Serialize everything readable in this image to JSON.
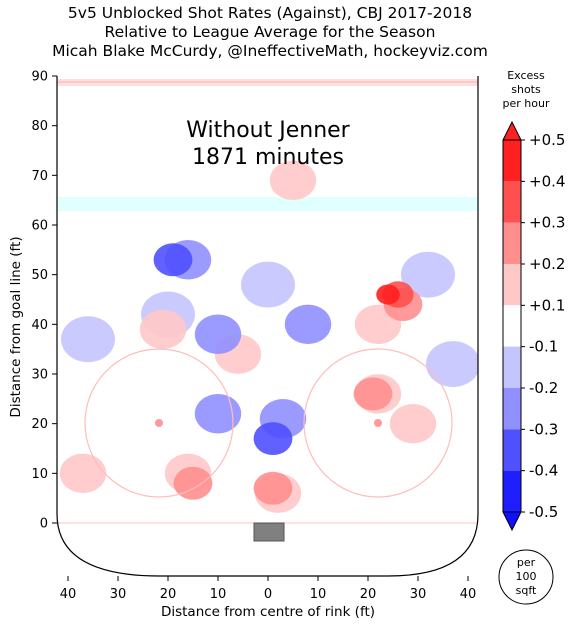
{
  "title_lines": [
    "5v5 Unblocked Shot Rates (Against), CBJ 2017-2018",
    "Relative to League Average for the Season",
    "Micah Blake McCurdy, @IneffectiveMath, hockeyviz.com"
  ],
  "annotation": {
    "line1": "Without Jenner",
    "line2": "1871 minutes"
  },
  "per_circle": [
    "per",
    "100",
    "sqft"
  ],
  "chart_data": {
    "type": "heatmap",
    "title": "5v5 Unblocked Shot Rates (Against), CBJ 2017-2018",
    "subtitle": "Relative to League Average for the Season",
    "xlabel": "Distance from centre of rink (ft)",
    "ylabel": "Distance from goal line (ft)",
    "xlim": [
      -42,
      42
    ],
    "ylim": [
      -11,
      90
    ],
    "x_tick_labels": [
      "40",
      "30",
      "20",
      "10",
      "0",
      "10",
      "20",
      "30",
      "40"
    ],
    "y_ticks": [
      0,
      10,
      20,
      30,
      40,
      50,
      60,
      70,
      80,
      90
    ],
    "colorbar": {
      "title_lines": [
        "Excess",
        "shots",
        "per hour"
      ],
      "tick_labels": [
        "+0.5",
        "+0.4",
        "+0.3",
        "+0.2",
        "+0.1",
        "-0.1",
        "-0.2",
        "-0.3",
        "-0.4",
        "-0.5"
      ],
      "bands": [
        {
          "level": "+0.5",
          "color": "#ff2020"
        },
        {
          "level": "+0.4",
          "color": "#ff4f4f"
        },
        {
          "level": "+0.3",
          "color": "#ff8f8f"
        },
        {
          "level": "+0.2",
          "color": "#ffc8c8"
        },
        {
          "level": "+0.1",
          "color": "#ffffff"
        },
        {
          "level": "-0.1",
          "color": "#c4c4ff"
        },
        {
          "level": "-0.2",
          "color": "#9090ff"
        },
        {
          "level": "-0.3",
          "color": "#5050ff"
        },
        {
          "level": "-0.4",
          "color": "#1e1eff"
        }
      ]
    },
    "excess_regions": [
      {
        "x": 24,
        "y": 46,
        "level": 0.5,
        "sign": "positive"
      },
      {
        "x": 26,
        "y": 46,
        "level": 0.4,
        "sign": "positive"
      },
      {
        "x": 27,
        "y": 44,
        "level": 0.3,
        "sign": "positive"
      },
      {
        "x": 22,
        "y": 40,
        "level": 0.2,
        "sign": "positive"
      },
      {
        "x": 21,
        "y": 26,
        "level": 0.3,
        "sign": "positive"
      },
      {
        "x": 22,
        "y": 26,
        "level": 0.2,
        "sign": "positive"
      },
      {
        "x": 29,
        "y": 20,
        "level": 0.2,
        "sign": "positive"
      },
      {
        "x": 1,
        "y": 7,
        "level": 0.3,
        "sign": "positive"
      },
      {
        "x": 2,
        "y": 6,
        "level": 0.2,
        "sign": "positive"
      },
      {
        "x": -16,
        "y": 10,
        "level": 0.2,
        "sign": "positive"
      },
      {
        "x": -15,
        "y": 8,
        "level": 0.3,
        "sign": "positive"
      },
      {
        "x": -37,
        "y": 10,
        "level": 0.2,
        "sign": "positive"
      },
      {
        "x": -21,
        "y": 39,
        "level": 0.2,
        "sign": "positive"
      },
      {
        "x": -6,
        "y": 34,
        "level": 0.2,
        "sign": "positive"
      },
      {
        "x": 5,
        "y": 69,
        "level": 0.2,
        "sign": "positive"
      },
      {
        "x": -16,
        "y": 53,
        "level": -0.2,
        "sign": "negative"
      },
      {
        "x": -19,
        "y": 53,
        "level": -0.3,
        "sign": "negative"
      },
      {
        "x": -10,
        "y": 38,
        "level": -0.2,
        "sign": "negative"
      },
      {
        "x": 8,
        "y": 40,
        "level": -0.2,
        "sign": "negative"
      },
      {
        "x": 1,
        "y": 17,
        "level": -0.3,
        "sign": "negative"
      },
      {
        "x": 3,
        "y": 21,
        "level": -0.2,
        "sign": "negative"
      },
      {
        "x": -10,
        "y": 22,
        "level": -0.2,
        "sign": "negative"
      },
      {
        "x": -20,
        "y": 42,
        "level": -0.1,
        "sign": "negative"
      },
      {
        "x": 0,
        "y": 48,
        "level": -0.1,
        "sign": "negative"
      },
      {
        "x": 32,
        "y": 50,
        "level": -0.1,
        "sign": "negative"
      },
      {
        "x": 37,
        "y": 32,
        "level": -0.1,
        "sign": "negative"
      },
      {
        "x": -36,
        "y": 37,
        "level": -0.1,
        "sign": "negative"
      }
    ]
  }
}
